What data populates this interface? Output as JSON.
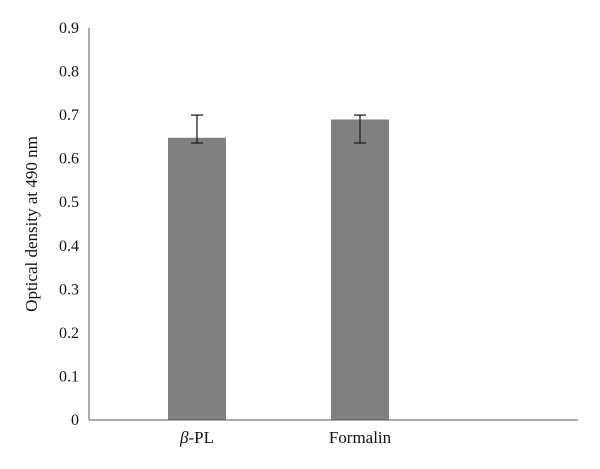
{
  "chart_data": {
    "type": "bar",
    "categories": [
      "β-PL",
      "Formalin"
    ],
    "values": [
      0.648,
      0.69
    ],
    "error_bars": [
      {
        "low": 0.636,
        "high": 0.7
      },
      {
        "low": 0.636,
        "high": 0.7
      }
    ],
    "title": "",
    "xlabel": "",
    "ylabel": "Optical density at 490 nm",
    "ylim": [
      0,
      0.9
    ],
    "yticks": [
      0,
      0.1,
      0.2,
      0.3,
      0.4,
      0.5,
      0.6,
      0.7,
      0.8,
      0.9
    ],
    "ytick_labels": [
      "0",
      "0.1",
      "0.2",
      "0.3",
      "0.4",
      "0.5",
      "0.6",
      "0.7",
      "0.8",
      "0.9"
    ],
    "grid": false,
    "legend": "none",
    "bar_color": "#808080",
    "axis_color": "#555555",
    "background": "#ffffff"
  }
}
